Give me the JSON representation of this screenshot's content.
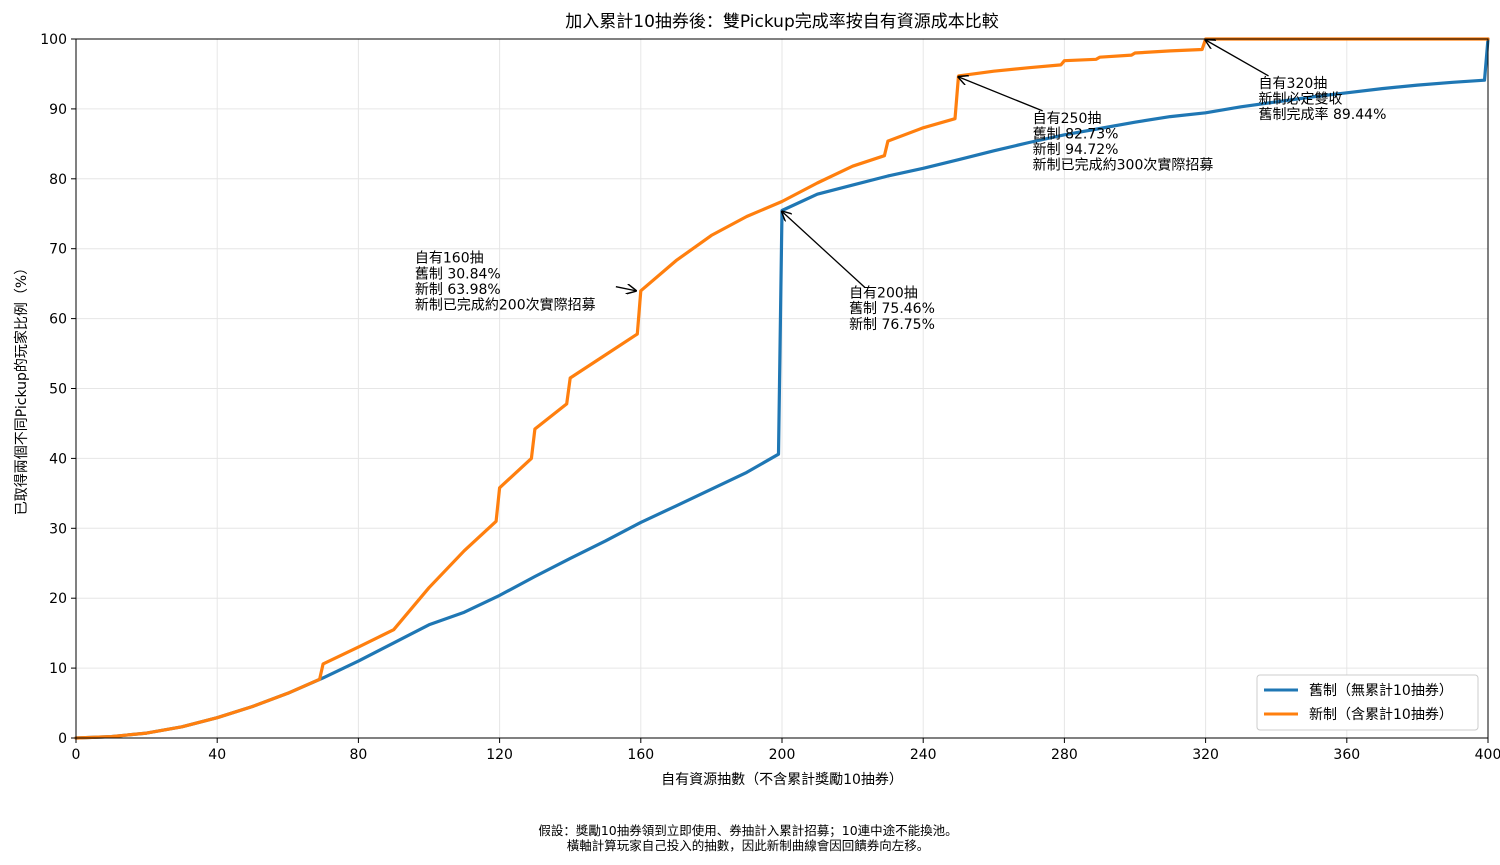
{
  "chart_data": {
    "type": "line",
    "title": "加入累計10抽券後：雙Pickup完成率按自有資源成本比較",
    "xlabel": "自有資源抽數（不含累計獎勵10抽券）",
    "ylabel": "已取得兩個不同Pickup的玩家比例（%）",
    "xlim": [
      0,
      400
    ],
    "ylim": [
      0,
      100
    ],
    "xticks": [
      0,
      40,
      80,
      120,
      160,
      200,
      240,
      280,
      320,
      360,
      400
    ],
    "yticks": [
      0,
      10,
      20,
      30,
      40,
      50,
      60,
      70,
      80,
      90,
      100
    ],
    "grid": true,
    "legend_position": "lower-right",
    "colors": {
      "old": "#1f77b4",
      "new": "#ff7f0e"
    },
    "series": [
      {
        "name": "舊制（無累計10抽券）",
        "x": [
          0,
          10,
          20,
          30,
          40,
          50,
          60,
          70,
          80,
          90,
          100,
          110,
          120,
          130,
          140,
          150,
          160,
          170,
          180,
          190,
          199,
          200,
          210,
          220,
          230,
          240,
          250,
          260,
          270,
          280,
          290,
          300,
          310,
          320,
          330,
          340,
          350,
          360,
          370,
          380,
          390,
          399,
          400
        ],
        "y": [
          0,
          0.2,
          0.7,
          1.6,
          2.9,
          4.5,
          6.4,
          8.6,
          11.0,
          13.6,
          16.2,
          18.0,
          20.4,
          23.1,
          25.7,
          28.2,
          30.84,
          33.2,
          35.6,
          38.0,
          40.6,
          75.46,
          77.8,
          79.1,
          80.4,
          81.5,
          82.73,
          84.0,
          85.2,
          86.3,
          87.2,
          88.1,
          88.9,
          89.44,
          90.3,
          91.0,
          91.7,
          92.3,
          92.9,
          93.4,
          93.8,
          94.1,
          100
        ]
      },
      {
        "name": "新制（含累計10抽券）",
        "x": [
          0,
          10,
          20,
          30,
          40,
          50,
          60,
          69,
          70,
          80,
          90,
          100,
          110,
          119,
          120,
          129,
          130,
          139,
          140,
          150,
          159,
          160,
          170,
          180,
          190,
          200,
          210,
          220,
          229,
          230,
          240,
          249,
          250,
          260,
          270,
          279,
          280,
          289,
          290,
          299,
          300,
          310,
          319,
          320,
          400
        ],
        "y": [
          0,
          0.2,
          0.7,
          1.6,
          2.9,
          4.5,
          6.4,
          8.4,
          10.6,
          13.0,
          15.5,
          21.5,
          26.8,
          31.0,
          35.8,
          40.0,
          44.2,
          47.8,
          51.5,
          54.8,
          57.8,
          63.98,
          68.3,
          71.9,
          74.6,
          76.75,
          79.4,
          81.8,
          83.3,
          85.4,
          87.3,
          88.6,
          94.72,
          95.4,
          95.9,
          96.3,
          96.9,
          97.1,
          97.4,
          97.7,
          98.0,
          98.3,
          98.5,
          100,
          100
        ]
      }
    ],
    "annotations": [
      {
        "lines": [
          "自有160抽",
          "舊制 30.84%",
          "新制 63.98%",
          "新制已完成約200次實際招募"
        ],
        "target": [
          160,
          63.98
        ],
        "text_at": [
          96,
          68
        ]
      },
      {
        "lines": [
          "自有200抽",
          "舊制 75.46%",
          "新制 76.75%"
        ],
        "target": [
          200,
          75.46
        ],
        "text_at": [
          219,
          63
        ]
      },
      {
        "lines": [
          "自有250抽",
          "舊制 82.73%",
          "新制 94.72%",
          "新制已完成約300次實際招募"
        ],
        "target": [
          250,
          94.72
        ],
        "text_at": [
          271,
          88
        ]
      },
      {
        "lines": [
          "自有320抽",
          "新制必定雙收",
          "舊制完成率 89.44%"
        ],
        "target": [
          320,
          100
        ],
        "text_at": [
          335,
          93
        ]
      }
    ]
  },
  "footnote": {
    "line1": "假設：獎勵10抽券領到立即使用、券抽計入累計招募；10連中途不能換池。",
    "line2": "橫軸計算玩家自己投入的抽數，因此新制曲線會因回饋券向左移。"
  }
}
